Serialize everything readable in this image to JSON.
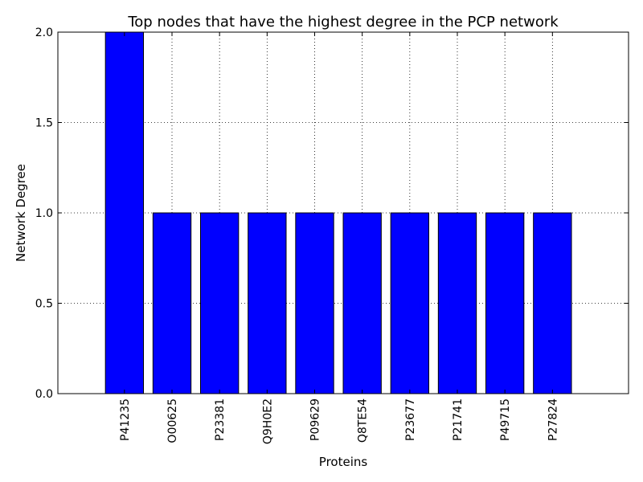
{
  "chart_data": {
    "type": "bar",
    "title": "Top nodes that have the highest degree in the PCP network",
    "xlabel": "Proteins",
    "ylabel": "Network Degree",
    "categories": [
      "P41235",
      "O00625",
      "P23381",
      "Q9H0E2",
      "P09629",
      "Q8TE54",
      "P23677",
      "P21741",
      "P49715",
      "P27824"
    ],
    "values": [
      2,
      1,
      1,
      1,
      1,
      1,
      1,
      1,
      1,
      1
    ],
    "ylim": [
      0,
      2.0
    ],
    "yticks": [
      "0.0",
      "0.5",
      "1.0",
      "1.5",
      "2.0"
    ],
    "grid": true,
    "bar_color": "#0000ff"
  }
}
